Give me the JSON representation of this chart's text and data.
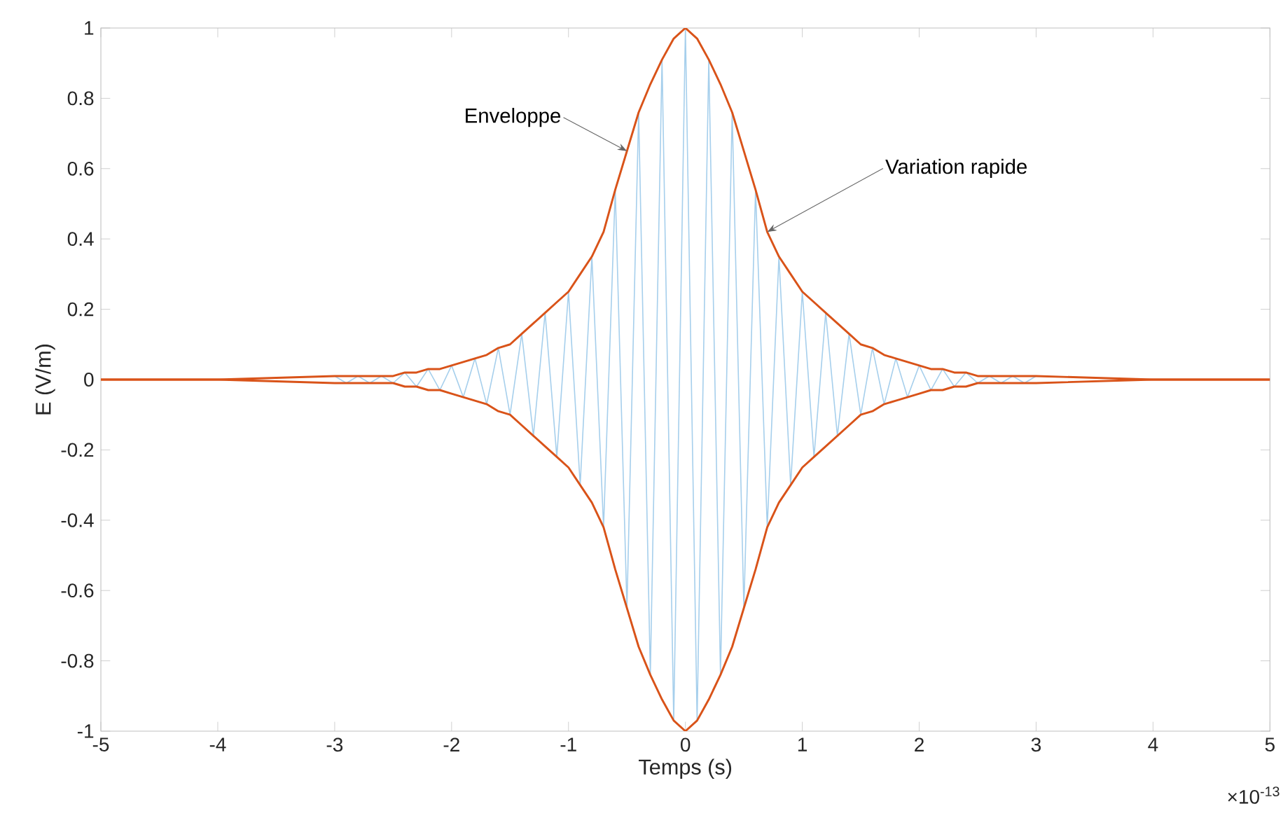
{
  "chart_data": {
    "type": "line",
    "xlabel": "Temps (s)",
    "ylabel": "E (V/m)",
    "x": [
      -5,
      -4,
      -3,
      -2.9,
      -2.8,
      -2.7,
      -2.6,
      -2.5,
      -2.4,
      -2.3,
      -2.2,
      -2.1,
      -2,
      -1.9,
      -1.8,
      -1.7,
      -1.6,
      -1.5,
      -1.4,
      -1.3,
      -1.2,
      -1.1,
      -1,
      -0.9,
      -0.8,
      -0.7,
      -0.6,
      -0.5,
      -0.4,
      -0.3,
      -0.2,
      -0.1,
      0,
      0.1,
      0.2,
      0.3,
      0.4,
      0.5,
      0.6,
      0.7,
      0.8,
      0.9,
      1,
      1.1,
      1.2,
      1.3,
      1.4,
      1.5,
      1.6,
      1.7,
      1.8,
      1.9,
      2,
      2.1,
      2.2,
      2.3,
      2.4,
      2.5,
      2.6,
      2.7,
      2.8,
      2.9,
      3,
      4,
      5
    ],
    "series": [
      {
        "color": "#a6cfec",
        "values": [
          0,
          0,
          0.01,
          -0.01,
          0.01,
          -0.01,
          0.01,
          -0.01,
          0.02,
          -0.02,
          0.03,
          -0.03,
          0.04,
          -0.05,
          0.06,
          -0.07,
          0.09,
          -0.1,
          0.13,
          -0.16,
          0.19,
          -0.22,
          0.25,
          -0.3,
          0.35,
          -0.42,
          0.54,
          -0.65,
          0.76,
          -0.84,
          0.91,
          -0.97,
          1,
          -0.97,
          0.91,
          -0.84,
          0.76,
          -0.65,
          0.54,
          -0.42,
          0.35,
          -0.3,
          0.25,
          -0.22,
          0.19,
          -0.16,
          0.13,
          -0.1,
          0.09,
          -0.07,
          0.06,
          -0.05,
          0.04,
          -0.03,
          0.03,
          -0.02,
          0.02,
          -0.01,
          0.01,
          -0.01,
          0.01,
          -0.01,
          0.01,
          0,
          0
        ]
      },
      {
        "color": "#d95319",
        "values": [
          0,
          0,
          0.01,
          0.01,
          0.01,
          0.01,
          0.01,
          0.01,
          0.02,
          0.02,
          0.03,
          0.03,
          0.04,
          0.05,
          0.06,
          0.07,
          0.09,
          0.1,
          0.13,
          0.16,
          0.19,
          0.22,
          0.25,
          0.3,
          0.35,
          0.42,
          0.54,
          0.65,
          0.76,
          0.84,
          0.91,
          0.97,
          1,
          0.97,
          0.91,
          0.84,
          0.76,
          0.65,
          0.54,
          0.42,
          0.35,
          0.3,
          0.25,
          0.22,
          0.19,
          0.16,
          0.13,
          0.1,
          0.09,
          0.07,
          0.06,
          0.05,
          0.04,
          0.03,
          0.03,
          0.02,
          0.02,
          0.01,
          0.01,
          0.01,
          0.01,
          0.01,
          0.01,
          0,
          0
        ]
      },
      {
        "color": "#d95319",
        "values": [
          0,
          0,
          -0.01,
          -0.01,
          -0.01,
          -0.01,
          -0.01,
          -0.01,
          -0.02,
          -0.02,
          -0.03,
          -0.03,
          -0.04,
          -0.05,
          -0.06,
          -0.07,
          -0.09,
          -0.1,
          -0.13,
          -0.16,
          -0.19,
          -0.22,
          -0.25,
          -0.3,
          -0.35,
          -0.42,
          -0.54,
          -0.65,
          -0.76,
          -0.84,
          -0.91,
          -0.97,
          -1,
          -0.97,
          -0.91,
          -0.84,
          -0.76,
          -0.65,
          -0.54,
          -0.42,
          -0.35,
          -0.3,
          -0.25,
          -0.22,
          -0.19,
          -0.16,
          -0.13,
          -0.1,
          -0.09,
          -0.07,
          -0.06,
          -0.05,
          -0.04,
          -0.03,
          -0.03,
          -0.02,
          -0.02,
          -0.01,
          -0.01,
          -0.01,
          -0.01,
          -0.01,
          -0.01,
          0,
          0
        ]
      }
    ],
    "xlim": [
      -5,
      5
    ],
    "ylim": [
      -1,
      1
    ],
    "xticks": [
      -5,
      -4,
      -3,
      -2,
      -1,
      0,
      1,
      2,
      3,
      4,
      5
    ],
    "yticks": [
      -1,
      -0.8,
      -0.6,
      -0.4,
      -0.2,
      0,
      0.2,
      0.4,
      0.6,
      0.8,
      1
    ],
    "annotations": [
      {
        "text": "Enveloppe",
        "x": -0.5,
        "y": 0.65
      },
      {
        "text": "Variation rapide",
        "x": 0.7,
        "y": 0.42
      },
      "×10$^{-13}$"
    ]
  }
}
